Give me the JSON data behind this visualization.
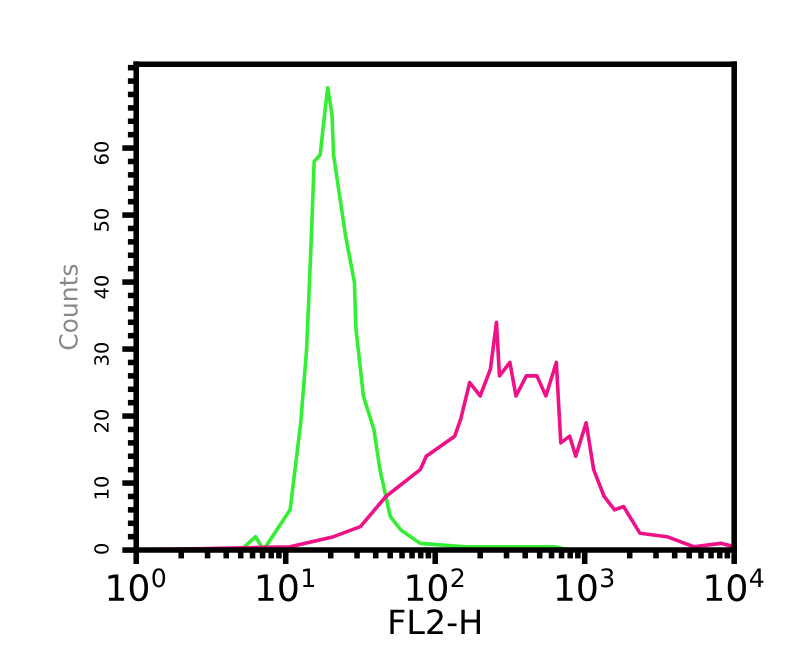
{
  "chart_data": {
    "type": "line",
    "xlabel": "FL2-H",
    "ylabel": "Counts",
    "log": "x",
    "grid": false,
    "legend": false,
    "marker": "none",
    "line_style": "solid",
    "xlim": [
      1,
      10000
    ],
    "xticks": [
      {
        "value": 1,
        "label": "10$^{0}$"
      },
      {
        "value": 10,
        "label": "10$^{1}$"
      },
      {
        "value": 100,
        "label": "10$^{2}$"
      },
      {
        "value": 1000,
        "label": "10$^{3}$"
      },
      {
        "value": 10000,
        "label": "10$^{4}$"
      }
    ],
    "ylim": [
      0,
      72.5
    ],
    "yticks": [
      0,
      10,
      20,
      30,
      40,
      50,
      60
    ],
    "series": [
      {
        "color": "#33ee33",
        "x": [
          1,
          5.0,
          6.3,
          7.1,
          10.7,
          12.6,
          13.8,
          14.8,
          15.5,
          17.0,
          18.2,
          19.1,
          20.4,
          20.9,
          22.9,
          25.1,
          28.8,
          29.5,
          33.1,
          38.9,
          42.7,
          50.1,
          58.9,
          79.4,
          158,
          316,
          631,
          794,
          10000
        ],
        "values": [
          0,
          0,
          2,
          0,
          6,
          19,
          30,
          46,
          58,
          59,
          65,
          69,
          65,
          59,
          53,
          47,
          40,
          33,
          23,
          18,
          12,
          5,
          3,
          1,
          0.5,
          0.5,
          0.5,
          0,
          0
        ]
      },
      {
        "color": "#ee1188",
        "x": [
          1,
          10.7,
          20.9,
          31.6,
          46.8,
          79.4,
          87.1,
          135,
          148,
          170,
          200,
          234,
          257,
          269,
          316,
          347,
          407,
          479,
          550,
          646,
          692,
          794,
          871,
          1023,
          1148,
          1349,
          1585,
          1820,
          2344,
          3548,
          5370,
          8128,
          10000
        ],
        "values": [
          0,
          0.5,
          2,
          3.5,
          8,
          12,
          14,
          17,
          19.5,
          25,
          23,
          27,
          34,
          26,
          28,
          23,
          26,
          26,
          23,
          28,
          16,
          17,
          14,
          19,
          12,
          8,
          6,
          6.5,
          2.5,
          2,
          0.5,
          1,
          0.5
        ]
      }
    ]
  }
}
